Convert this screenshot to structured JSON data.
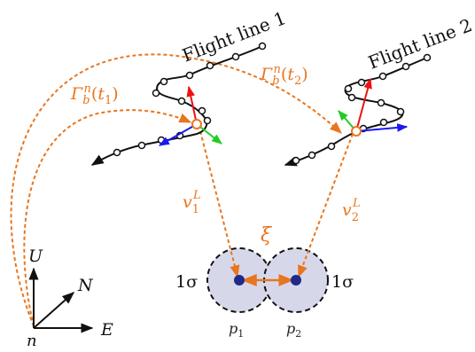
{
  "labels": {
    "flight_line_1": "Flight line 1",
    "flight_line_2": "Flight line 2",
    "gamma_t1": "Γbn(t1)",
    "gamma_t2": "Γbn(t2)",
    "v1": "v1L",
    "v2": "v2L",
    "xi": "ξ",
    "sigma_left": "1σ",
    "sigma_right": "1σ",
    "p1": "p1",
    "p2": "p2",
    "axis_u": "U",
    "axis_n": "N",
    "axis_e": "E",
    "origin": "n"
  },
  "colors": {
    "orange": "#e8761f",
    "red": "#ee1111",
    "green": "#22cc22",
    "blue": "#1a1aee",
    "disc_fill": "#d6d8ea",
    "point": "#1e2a8a",
    "black": "#111111"
  }
}
